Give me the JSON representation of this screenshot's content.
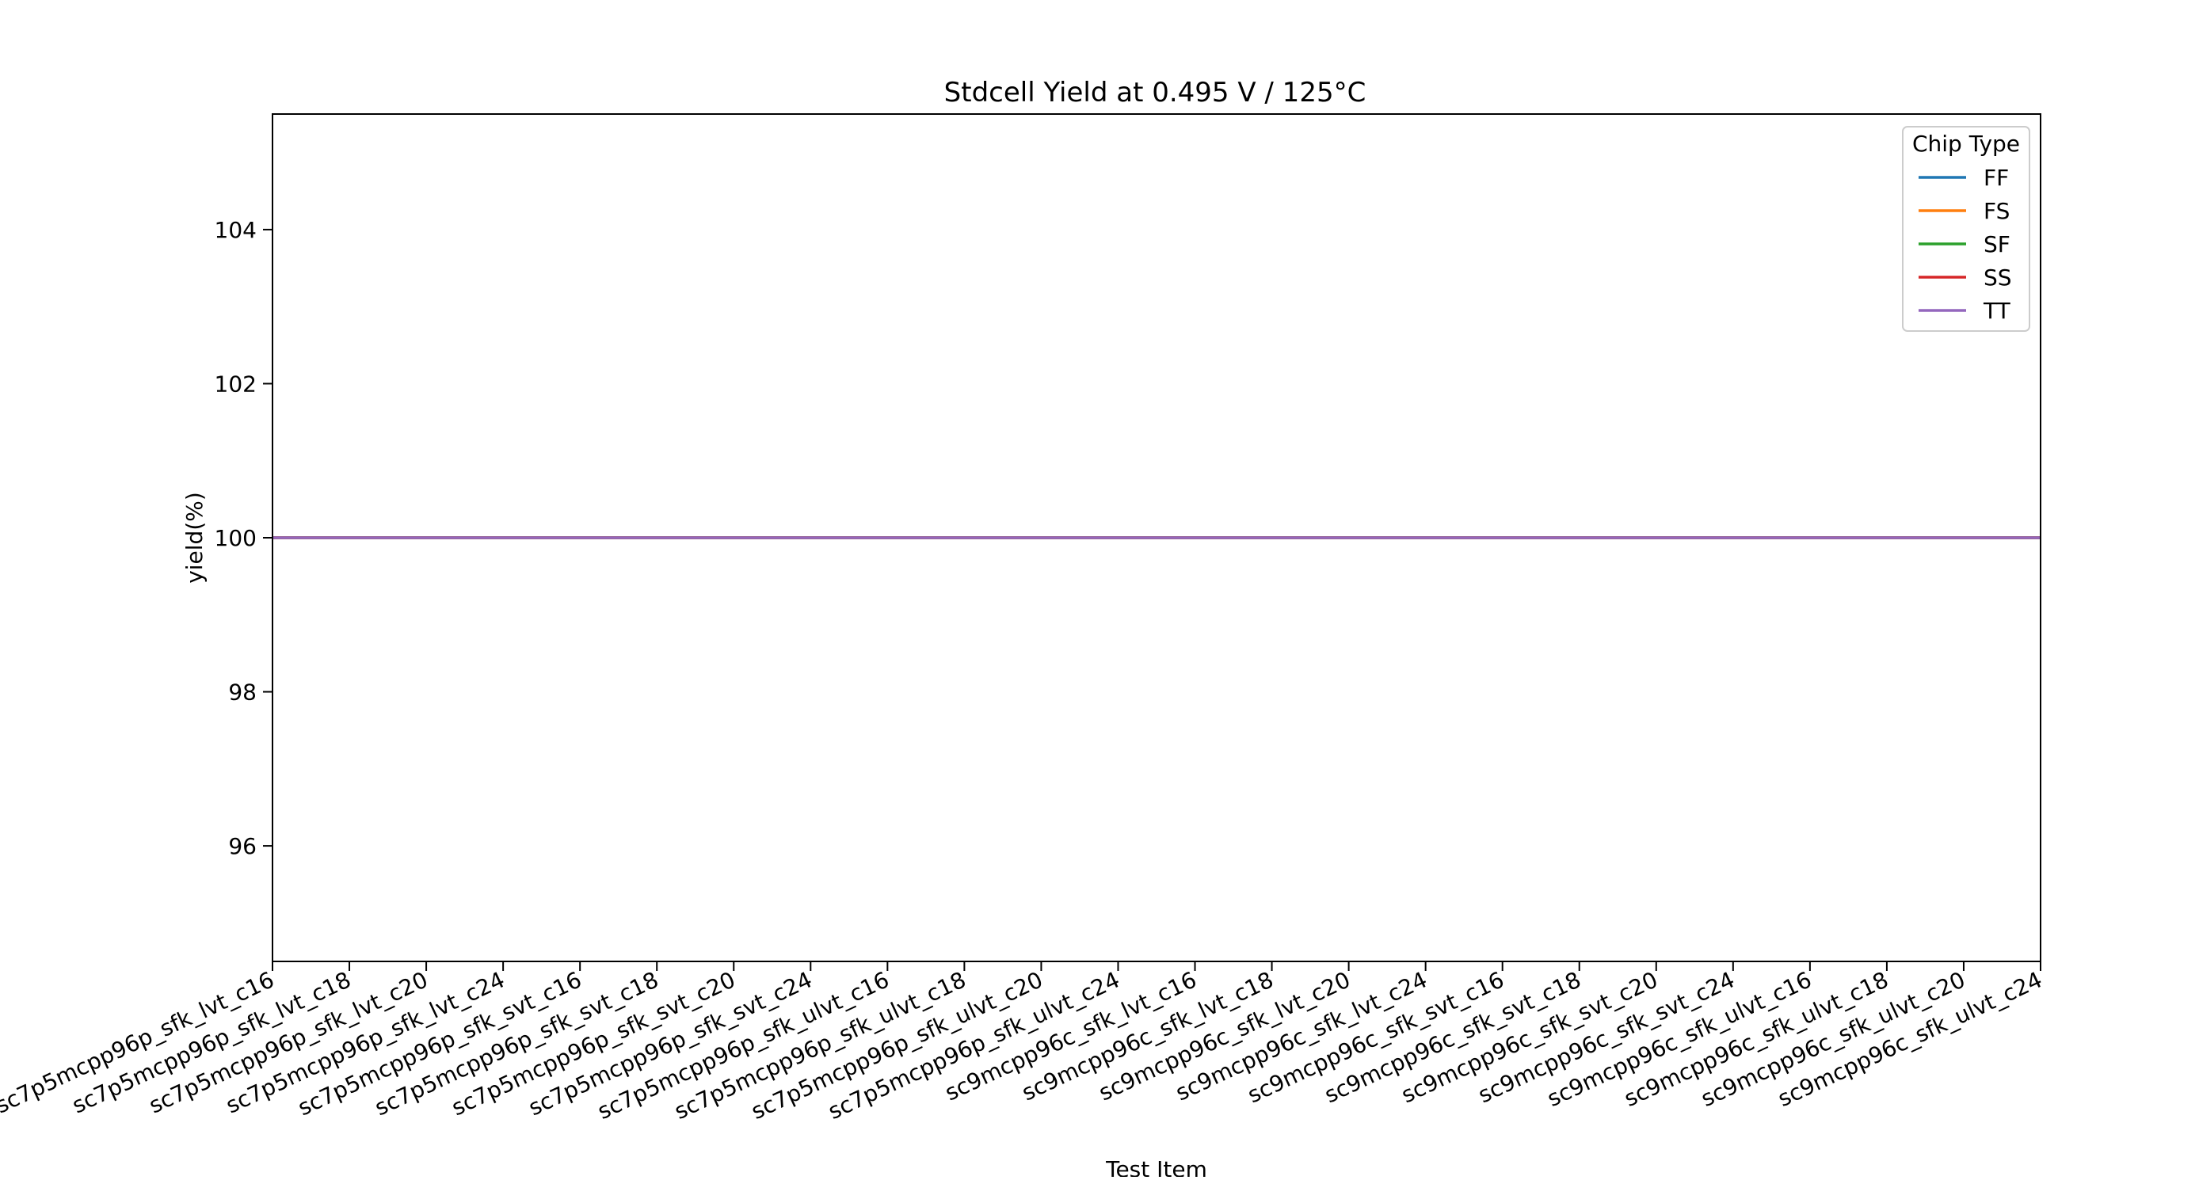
{
  "chart_data": {
    "type": "line",
    "title": "Stdcell Yield at 0.495 V / 125°C",
    "xlabel": "Test Item",
    "ylabel": "yield(%)",
    "ylim": [
      94.5,
      105.5
    ],
    "yticks": [
      96,
      98,
      100,
      102,
      104
    ],
    "grid": false,
    "legend": {
      "title": "Chip Type",
      "placement": "top-right"
    },
    "categories": [
      "sc7p5mcpp96p_sfk_lvt_c16",
      "sc7p5mcpp96p_sfk_lvt_c18",
      "sc7p5mcpp96p_sfk_lvt_c20",
      "sc7p5mcpp96p_sfk_lvt_c24",
      "sc7p5mcpp96p_sfk_svt_c16",
      "sc7p5mcpp96p_sfk_svt_c18",
      "sc7p5mcpp96p_sfk_svt_c20",
      "sc7p5mcpp96p_sfk_svt_c24",
      "sc7p5mcpp96p_sfk_ulvt_c16",
      "sc7p5mcpp96p_sfk_ulvt_c18",
      "sc7p5mcpp96p_sfk_ulvt_c20",
      "sc7p5mcpp96p_sfk_ulvt_c24",
      "sc9mcpp96c_sfk_lvt_c16",
      "sc9mcpp96c_sfk_lvt_c18",
      "sc9mcpp96c_sfk_lvt_c20",
      "sc9mcpp96c_sfk_lvt_c24",
      "sc9mcpp96c_sfk_svt_c16",
      "sc9mcpp96c_sfk_svt_c18",
      "sc9mcpp96c_sfk_svt_c20",
      "sc9mcpp96c_sfk_svt_c24",
      "sc9mcpp96c_sfk_ulvt_c16",
      "sc9mcpp96c_sfk_ulvt_c18",
      "sc9mcpp96c_sfk_ulvt_c20",
      "sc9mcpp96c_sfk_ulvt_c24"
    ],
    "series": [
      {
        "name": "FF",
        "color": "#1f77b4",
        "values": [
          100,
          100,
          100,
          100,
          100,
          100,
          100,
          100,
          100,
          100,
          100,
          100,
          100,
          100,
          100,
          100,
          100,
          100,
          100,
          100,
          100,
          100,
          100,
          100
        ]
      },
      {
        "name": "FS",
        "color": "#ff7f0e",
        "values": [
          100,
          100,
          100,
          100,
          100,
          100,
          100,
          100,
          100,
          100,
          100,
          100,
          100,
          100,
          100,
          100,
          100,
          100,
          100,
          100,
          100,
          100,
          100,
          100
        ]
      },
      {
        "name": "SF",
        "color": "#2ca02c",
        "values": [
          100,
          100,
          100,
          100,
          100,
          100,
          100,
          100,
          100,
          100,
          100,
          100,
          100,
          100,
          100,
          100,
          100,
          100,
          100,
          100,
          100,
          100,
          100,
          100
        ]
      },
      {
        "name": "SS",
        "color": "#d62728",
        "values": [
          100,
          100,
          100,
          100,
          100,
          100,
          100,
          100,
          100,
          100,
          100,
          100,
          100,
          100,
          100,
          100,
          100,
          100,
          100,
          100,
          100,
          100,
          100,
          100
        ]
      },
      {
        "name": "TT",
        "color": "#9467bd",
        "values": [
          100,
          100,
          100,
          100,
          100,
          100,
          100,
          100,
          100,
          100,
          100,
          100,
          100,
          100,
          100,
          100,
          100,
          100,
          100,
          100,
          100,
          100,
          100,
          100
        ]
      }
    ]
  }
}
